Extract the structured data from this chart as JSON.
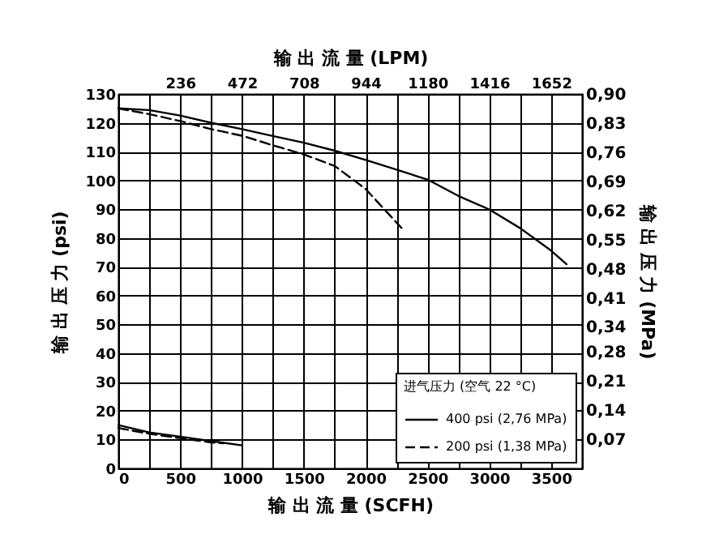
{
  "chart_data": {
    "type": "line",
    "xlabel": "输 出 流 量 (SCFH)",
    "x2label": "输 出 流 量 (LPM)",
    "ylabel": "输 出 压 力 (psi)",
    "y2label": "输 出 压 力 (MPa)",
    "legend_title": "进气压力 (空气 22 °C)",
    "xlim": [
      0,
      3750
    ],
    "xticks": [
      0,
      {
        "value": 250,
        "label": null
      },
      500,
      {
        "value": 750,
        "label": null
      },
      1000,
      {
        "value": 1250,
        "label": null
      },
      1500,
      {
        "value": 1750,
        "label": null
      },
      2000,
      {
        "value": 2250,
        "label": null
      },
      2500,
      {
        "value": 2750,
        "label": null
      },
      3000,
      {
        "value": 3250,
        "label": null
      },
      3500
    ],
    "x2lim": [
      0,
      1770
    ],
    "x2ticks": [
      236,
      472,
      708,
      944,
      1180,
      1416,
      1652
    ],
    "ylim": [
      0,
      130
    ],
    "yticks": [
      0,
      10,
      20,
      30,
      40,
      50,
      60,
      70,
      80,
      90,
      100,
      110,
      120,
      130
    ],
    "y2lim": [
      0,
      0.9
    ],
    "y2ticks": [
      {
        "value": 0.07,
        "label": "0,07"
      },
      {
        "value": 0.14,
        "label": "0,14"
      },
      {
        "value": 0.21,
        "label": "0,21"
      },
      {
        "value": 0.28,
        "label": "0,28"
      },
      {
        "value": 0.34,
        "label": "0,34"
      },
      {
        "value": 0.41,
        "label": "0,41"
      },
      {
        "value": 0.48,
        "label": "0,48"
      },
      {
        "value": 0.55,
        "label": "0,55"
      },
      {
        "value": 0.62,
        "label": "0,62"
      },
      {
        "value": 0.69,
        "label": "0,69"
      },
      {
        "value": 0.76,
        "label": "0,76"
      },
      {
        "value": 0.83,
        "label": "0,83"
      },
      {
        "value": 0.9,
        "label": "0,90"
      }
    ],
    "grid": true,
    "legend": "bottom right",
    "series": [
      {
        "name": "400 psi (2,76 MPa)",
        "color": "#000000",
        "line_style": "solid",
        "x": [
          0,
          250,
          500,
          750,
          1000,
          1250,
          1500,
          1750,
          2000,
          2250,
          2500,
          2750,
          3000,
          3250,
          3500,
          3625
        ],
        "values": [
          125,
          124.4,
          122.5,
          120,
          117.8,
          115.4,
          113.1,
          110.3,
          107.1,
          103.7,
          100.3,
          94.6,
          89.9,
          83.4,
          75.6,
          70.9
        ]
      },
      {
        "name": "200 psi (1,38 MPa)",
        "color": "#000000",
        "line_style": "dashed",
        "x": [
          0,
          250,
          500,
          750,
          1000,
          1250,
          1500,
          1750,
          2000,
          2150,
          2290
        ],
        "values": [
          125,
          123,
          120.6,
          117.8,
          115.5,
          112.2,
          109,
          105,
          97,
          90,
          83.5
        ]
      },
      {
        "color": "#000000",
        "line_style": "solid",
        "x": [
          0,
          250,
          500,
          750,
          1000
        ],
        "values": [
          15,
          12.5,
          11,
          9.5,
          8
        ]
      },
      {
        "color": "#000000",
        "line_style": "dashed",
        "x": [
          0,
          250,
          500,
          750,
          850
        ],
        "values": [
          14,
          12,
          10.5,
          9,
          8.7
        ]
      }
    ]
  }
}
